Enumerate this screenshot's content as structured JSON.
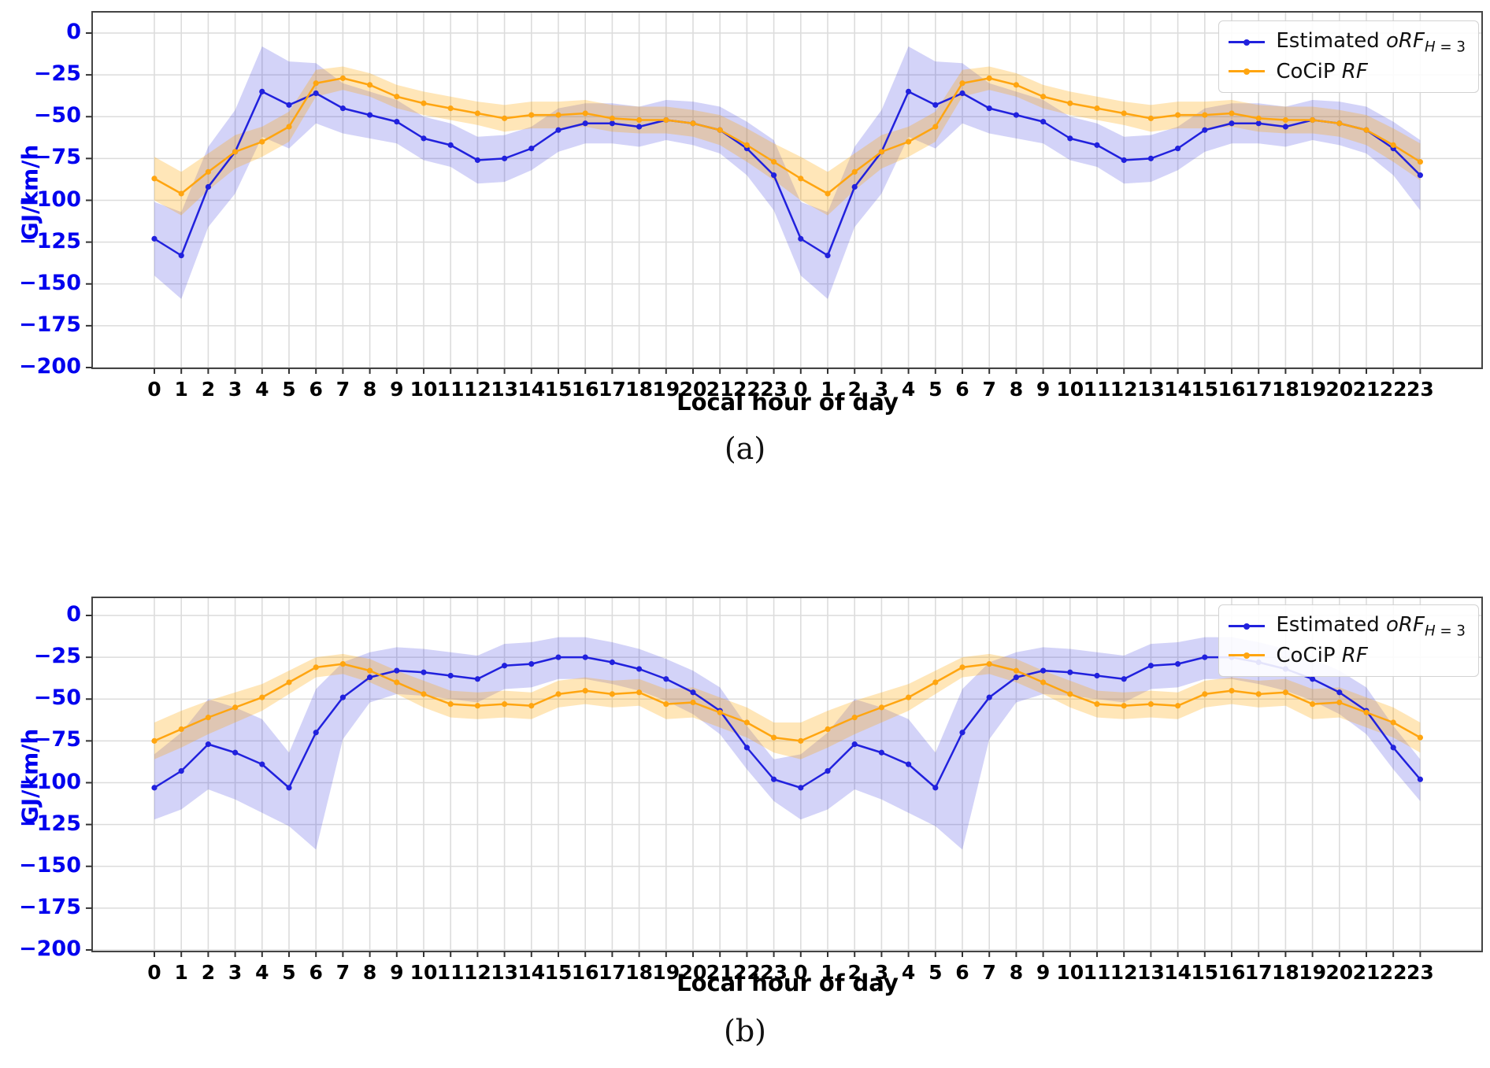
{
  "figure": {
    "background": "#ffffff",
    "captions": [
      "(a)",
      "(b)"
    ],
    "axis_color": "#0000ee",
    "grid_color": "#dcdcdc",
    "spine_color": "#444444"
  },
  "chart_data": [
    {
      "id": "a",
      "type": "line",
      "caption": "(a)",
      "xlabel": "Local hour of day",
      "ylabel": "GJ/km/h",
      "ylim": [
        -200,
        12
      ],
      "grid": true,
      "legend_position": "upper right",
      "yticks": [
        "0",
        "−25",
        "−50",
        "−75",
        "−100",
        "−125",
        "−150",
        "−175",
        "−200"
      ],
      "ytick_values": [
        0,
        -25,
        -50,
        -75,
        -100,
        -125,
        -150,
        -175,
        -200
      ],
      "xticks": [
        "0",
        "1",
        "2",
        "3",
        "4",
        "5",
        "6",
        "7",
        "8",
        "9",
        "10",
        "11",
        "12",
        "13",
        "14",
        "15",
        "16",
        "17",
        "18",
        "19",
        "20",
        "21",
        "22",
        "23",
        "0",
        "1",
        "2",
        "3",
        "4",
        "5",
        "6",
        "7",
        "8",
        "9",
        "10",
        "11",
        "12",
        "13",
        "14",
        "15",
        "16",
        "17",
        "18",
        "19",
        "20",
        "21",
        "22",
        "23"
      ],
      "series": [
        {
          "name": "Estimated oRF_H=3",
          "legend": {
            "prefix": "Estimated ",
            "var": "oRF",
            "sub_var": "H",
            "sub_rest": " = 3"
          },
          "color": "#2121dd",
          "band_fill": "rgba(34,34,221,0.20)",
          "values": [
            -123,
            -133,
            -92,
            -71,
            -35,
            -43,
            -36,
            -45,
            -49,
            -53,
            -63,
            -67,
            -76,
            -75,
            -69,
            -58,
            -54,
            -54,
            -56,
            -52,
            -54,
            -58,
            -69,
            -85,
            -123,
            -133,
            -92,
            -71,
            -35,
            -43,
            -36,
            -45,
            -49,
            -53,
            -63,
            -67,
            -76,
            -75,
            -69,
            -58,
            -54,
            -54,
            -56,
            -52,
            -54,
            -58,
            -69,
            -85
          ],
          "band_upper": [
            -101,
            -107,
            -68,
            -46,
            -8,
            -17,
            -18,
            -30,
            -35,
            -40,
            -50,
            -54,
            -62,
            -61,
            -56,
            -45,
            -42,
            -42,
            -44,
            -40,
            -41,
            -44,
            -53,
            -64,
            -101,
            -107,
            -68,
            -46,
            -8,
            -17,
            -18,
            -30,
            -35,
            -40,
            -50,
            -54,
            -62,
            -61,
            -56,
            -45,
            -42,
            -42,
            -44,
            -40,
            -41,
            -44,
            -53,
            -64
          ],
          "band_lower": [
            -145,
            -159,
            -116,
            -96,
            -62,
            -69,
            -54,
            -60,
            -63,
            -66,
            -76,
            -80,
            -90,
            -89,
            -82,
            -71,
            -66,
            -66,
            -68,
            -64,
            -67,
            -72,
            -85,
            -106,
            -145,
            -159,
            -116,
            -96,
            -62,
            -69,
            -54,
            -60,
            -63,
            -66,
            -76,
            -80,
            -90,
            -89,
            -82,
            -71,
            -66,
            -66,
            -68,
            -64,
            -67,
            -72,
            -85,
            -106
          ]
        },
        {
          "name": "CoCiP RF",
          "legend": {
            "prefix": "CoCiP ",
            "var": "RF",
            "sub_var": "",
            "sub_rest": ""
          },
          "color": "#ffa510",
          "band_fill": "rgba(255,165,0,0.28)",
          "values": [
            -87,
            -96,
            -83,
            -71,
            -65,
            -56,
            -30,
            -27,
            -31,
            -38,
            -42,
            -45,
            -48,
            -51,
            -49,
            -49,
            -48,
            -51,
            -52,
            -52,
            -54,
            -58,
            -67,
            -77,
            -87,
            -96,
            -83,
            -71,
            -65,
            -56,
            -30,
            -27,
            -31,
            -38,
            -42,
            -45,
            -48,
            -51,
            -49,
            -49,
            -48,
            -51,
            -52,
            -52,
            -54,
            -58,
            -67,
            -77
          ],
          "band_upper": [
            -74,
            -83,
            -72,
            -61,
            -56,
            -47,
            -22,
            -20,
            -24,
            -31,
            -35,
            -38,
            -41,
            -43,
            -41,
            -41,
            -40,
            -43,
            -44,
            -44,
            -46,
            -49,
            -57,
            -66,
            -74,
            -83,
            -72,
            -61,
            -56,
            -47,
            -22,
            -20,
            -24,
            -31,
            -35,
            -38,
            -41,
            -43,
            -41,
            -41,
            -40,
            -43,
            -44,
            -44,
            -46,
            -49,
            -57,
            -66
          ],
          "band_lower": [
            -100,
            -109,
            -94,
            -81,
            -74,
            -65,
            -38,
            -34,
            -38,
            -45,
            -49,
            -52,
            -55,
            -59,
            -57,
            -57,
            -56,
            -59,
            -60,
            -60,
            -62,
            -67,
            -77,
            -88,
            -100,
            -109,
            -94,
            -81,
            -74,
            -65,
            -38,
            -34,
            -38,
            -45,
            -49,
            -52,
            -55,
            -59,
            -57,
            -57,
            -56,
            -59,
            -60,
            -60,
            -62,
            -67,
            -77,
            -88
          ]
        }
      ]
    },
    {
      "id": "b",
      "type": "line",
      "caption": "(b)",
      "xlabel": "Local hour of day",
      "ylabel": "GJ/km/h",
      "ylim": [
        -200,
        12
      ],
      "grid": true,
      "legend_position": "upper right",
      "yticks": [
        "0",
        "−25",
        "−50",
        "−75",
        "−100",
        "−125",
        "−150",
        "−175",
        "−200"
      ],
      "ytick_values": [
        0,
        -25,
        -50,
        -75,
        -100,
        -125,
        -150,
        -175,
        -200
      ],
      "xticks": [
        "0",
        "1",
        "2",
        "3",
        "4",
        "5",
        "6",
        "7",
        "8",
        "9",
        "10",
        "11",
        "12",
        "13",
        "14",
        "15",
        "16",
        "17",
        "18",
        "19",
        "20",
        "21",
        "22",
        "23",
        "0",
        "1",
        "2",
        "3",
        "4",
        "5",
        "6",
        "7",
        "8",
        "9",
        "10",
        "11",
        "12",
        "13",
        "14",
        "15",
        "16",
        "17",
        "18",
        "19",
        "20",
        "21",
        "22",
        "23"
      ],
      "series": [
        {
          "name": "Estimated oRF_H=3",
          "legend": {
            "prefix": "Estimated ",
            "var": "oRF",
            "sub_var": "H",
            "sub_rest": " = 3"
          },
          "color": "#2121dd",
          "band_fill": "rgba(34,34,221,0.20)",
          "values": [
            -103,
            -93,
            -77,
            -82,
            -89,
            -103,
            -70,
            -49,
            -37,
            -33,
            -34,
            -36,
            -38,
            -30,
            -29,
            -25,
            -25,
            -28,
            -32,
            -38,
            -46,
            -57,
            -79,
            -98,
            -103,
            -93,
            -77,
            -82,
            -89,
            -103,
            -70,
            -49,
            -37,
            -33,
            -34,
            -36,
            -38,
            -30,
            -29,
            -25,
            -25,
            -28,
            -32,
            -38,
            -46,
            -57,
            -79,
            -98
          ],
          "band_upper": [
            -83,
            -70,
            -50,
            -55,
            -62,
            -82,
            -44,
            -28,
            -22,
            -19,
            -20,
            -22,
            -24,
            -17,
            -16,
            -13,
            -13,
            -16,
            -20,
            -26,
            -33,
            -43,
            -66,
            -86,
            -83,
            -70,
            -50,
            -55,
            -62,
            -82,
            -44,
            -28,
            -22,
            -19,
            -20,
            -22,
            -24,
            -17,
            -16,
            -13,
            -13,
            -16,
            -20,
            -26,
            -33,
            -43,
            -66,
            -86
          ],
          "band_lower": [
            -122,
            -116,
            -104,
            -110,
            -118,
            -126,
            -140,
            -74,
            -52,
            -47,
            -48,
            -50,
            -52,
            -44,
            -43,
            -38,
            -38,
            -41,
            -45,
            -51,
            -59,
            -71,
            -92,
            -111,
            -122,
            -116,
            -104,
            -110,
            -118,
            -126,
            -140,
            -74,
            -52,
            -47,
            -48,
            -50,
            -52,
            -44,
            -43,
            -38,
            -38,
            -41,
            -45,
            -51,
            -59,
            -71,
            -92,
            -111
          ]
        },
        {
          "name": "CoCiP RF",
          "legend": {
            "prefix": "CoCiP ",
            "var": "RF",
            "sub_var": "",
            "sub_rest": ""
          },
          "color": "#ffa510",
          "band_fill": "rgba(255,165,0,0.28)",
          "values": [
            -75,
            -68,
            -61,
            -55,
            -49,
            -40,
            -31,
            -29,
            -33,
            -40,
            -47,
            -53,
            -54,
            -53,
            -54,
            -47,
            -45,
            -47,
            -46,
            -53,
            -52,
            -58,
            -64,
            -73,
            -75,
            -68,
            -61,
            -55,
            -49,
            -40,
            -31,
            -29,
            -33,
            -40,
            -47,
            -53,
            -54,
            -53,
            -54,
            -47,
            -45,
            -47,
            -46,
            -53,
            -52,
            -58,
            -64,
            -73
          ],
          "band_upper": [
            -64,
            -57,
            -51,
            -46,
            -41,
            -33,
            -25,
            -23,
            -26,
            -33,
            -39,
            -45,
            -46,
            -45,
            -46,
            -39,
            -37,
            -39,
            -38,
            -44,
            -43,
            -49,
            -55,
            -64,
            -64,
            -57,
            -51,
            -46,
            -41,
            -33,
            -25,
            -23,
            -26,
            -33,
            -39,
            -45,
            -46,
            -45,
            -46,
            -39,
            -37,
            -39,
            -38,
            -44,
            -43,
            -49,
            -55,
            -64
          ],
          "band_lower": [
            -86,
            -79,
            -71,
            -64,
            -57,
            -47,
            -37,
            -35,
            -40,
            -47,
            -55,
            -61,
            -62,
            -61,
            -62,
            -55,
            -53,
            -55,
            -54,
            -62,
            -61,
            -67,
            -73,
            -82,
            -86,
            -79,
            -71,
            -64,
            -57,
            -47,
            -37,
            -35,
            -40,
            -47,
            -55,
            -61,
            -62,
            -61,
            -62,
            -55,
            -53,
            -55,
            -54,
            -62,
            -61,
            -67,
            -73,
            -82
          ]
        }
      ]
    }
  ]
}
